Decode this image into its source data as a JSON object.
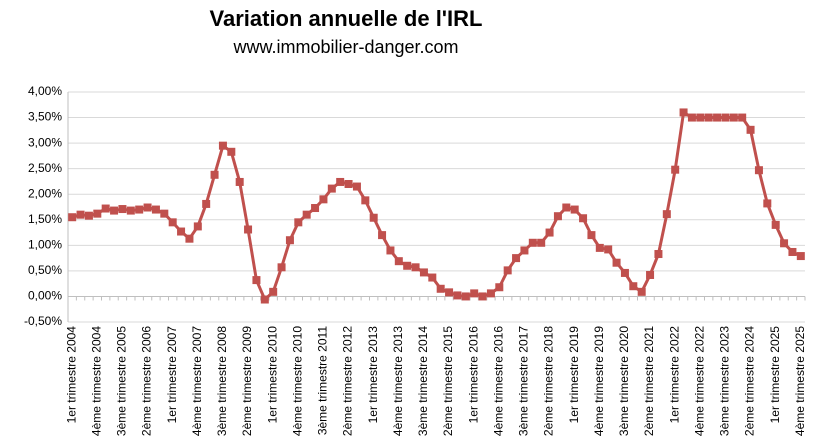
{
  "chart_data": {
    "type": "line",
    "title": "Variation annuelle de l'IRL",
    "subtitle": "www.immobilier-danger.com",
    "categories": [
      "1er trimestre 2004",
      null,
      null,
      "4ème trimestre 2004",
      null,
      null,
      "3ème trimestre 2005",
      null,
      null,
      "2ème trimestre 2006",
      null,
      null,
      "1er trimestre 2007",
      null,
      null,
      "4ème trimestre 2007",
      null,
      null,
      "3ème trimestre 2008",
      null,
      null,
      "2ème trimestre 2009",
      null,
      null,
      "1er trimestre 2010",
      null,
      null,
      "4ème trimestre 2010",
      null,
      null,
      "3ème trimestre 2011",
      null,
      null,
      "2ème trimestre 2012",
      null,
      null,
      "1er trimestre 2013",
      null,
      null,
      "4ème trimestre 2013",
      null,
      null,
      "3ème trimestre 2014",
      null,
      null,
      "2ème trimestre 2015",
      null,
      null,
      "1er trimestre 2016",
      null,
      null,
      "4ème trimestre 2016",
      null,
      null,
      "3ème trimestre 2017",
      null,
      null,
      "2ème trimestre 2018",
      null,
      null,
      "1er trimestre 2019",
      null,
      null,
      "4ème trimestre 2019",
      null,
      null,
      "3ème trimestre 2020",
      null,
      null,
      "2ème trimestre 2021",
      null,
      null,
      "1er trimestre 2022",
      null,
      null,
      "4ème trimestre 2022",
      null,
      null,
      "3ème trimestre 2023",
      null,
      null,
      "2ème trimestre 2024",
      null,
      null,
      "1er trimestre 2025",
      null,
      null,
      "4ème trimestre 2025"
    ],
    "series": [
      {
        "name": "IRL",
        "color": "#c0504d",
        "values": [
          1.55,
          1.6,
          1.58,
          1.62,
          1.72,
          1.68,
          1.71,
          1.68,
          1.7,
          1.74,
          1.7,
          1.62,
          1.45,
          1.27,
          1.13,
          1.37,
          1.81,
          2.38,
          2.95,
          2.83,
          2.24,
          1.31,
          0.32,
          -0.06,
          0.09,
          0.57,
          1.1,
          1.45,
          1.6,
          1.73,
          1.9,
          2.11,
          2.24,
          2.2,
          2.15,
          1.88,
          1.54,
          1.2,
          0.9,
          0.69,
          0.6,
          0.57,
          0.47,
          0.37,
          0.15,
          0.08,
          0.02,
          0.0,
          0.06,
          0.0,
          0.06,
          0.18,
          0.51,
          0.75,
          0.9,
          1.05,
          1.05,
          1.25,
          1.57,
          1.74,
          1.7,
          1.53,
          1.2,
          0.95,
          0.92,
          0.66,
          0.46,
          0.2,
          0.09,
          0.42,
          0.83,
          1.61,
          2.48,
          3.6,
          3.5,
          3.5,
          3.5,
          3.5,
          3.5,
          3.5,
          3.5,
          3.26,
          2.47,
          1.82,
          1.4,
          1.04,
          0.87,
          0.79
        ]
      }
    ],
    "ylim": [
      -0.5,
      4
    ],
    "yticks": [
      {
        "value": -0.5,
        "label": "-0,50%"
      },
      {
        "value": 0,
        "label": "0,00%"
      },
      {
        "value": 0.5,
        "label": "0,50%"
      },
      {
        "value": 1,
        "label": "1,00%"
      },
      {
        "value": 1.5,
        "label": "1,50%"
      },
      {
        "value": 2,
        "label": "2,00%"
      },
      {
        "value": 2.5,
        "label": "2,50%"
      },
      {
        "value": 3,
        "label": "3,00%"
      },
      {
        "value": 3.5,
        "label": "3,50%"
      },
      {
        "value": 4,
        "label": "4,00%"
      }
    ],
    "grid": true
  }
}
